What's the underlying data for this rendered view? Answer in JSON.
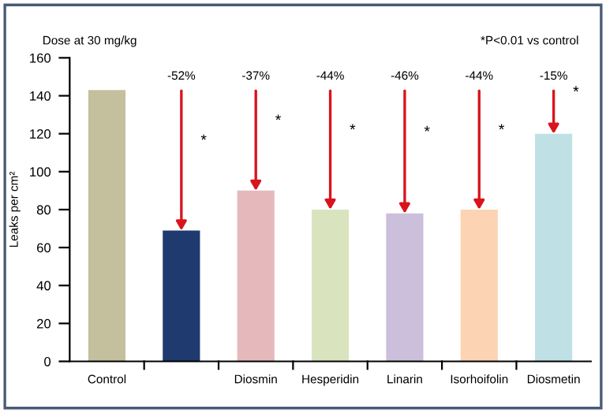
{
  "chart_data": {
    "type": "bar",
    "ylabel": "Leaks per cm²",
    "categories": [
      "Control",
      null,
      "Diosmin",
      "Hesperidin",
      "Linarin",
      "Isorhoifolin",
      "Diosmetin"
    ],
    "values": [
      143,
      69,
      90,
      80,
      78,
      80,
      120
    ],
    "colors": [
      "#c4bf9c",
      "#1f3a6e",
      "#e5b9bc",
      "#d9e4bf",
      "#cbbfdc",
      "#fcd4b4",
      "#bfe1e6"
    ],
    "ylim": [
      0,
      160
    ],
    "yticks": [
      0,
      20,
      40,
      60,
      80,
      100,
      120,
      140,
      160
    ],
    "grid": false,
    "annotations": [
      "Dose at 30 mg/kg",
      "*P<0.01 vs control",
      {
        "text": "-52%",
        "y": 69
      },
      {
        "text": "-37%",
        "x": "Diosmin",
        "y": 90
      },
      {
        "text": "-44%",
        "x": "Hesperidin",
        "y": 80
      },
      {
        "text": "-46%",
        "x": "Linarin",
        "y": 78
      },
      {
        "text": "-44%",
        "x": "Isorhoifolin",
        "y": 80
      },
      {
        "text": "-15%",
        "x": "Diosmetin",
        "y": 120
      },
      "*",
      "*",
      "*",
      "*",
      "*",
      "*"
    ]
  }
}
